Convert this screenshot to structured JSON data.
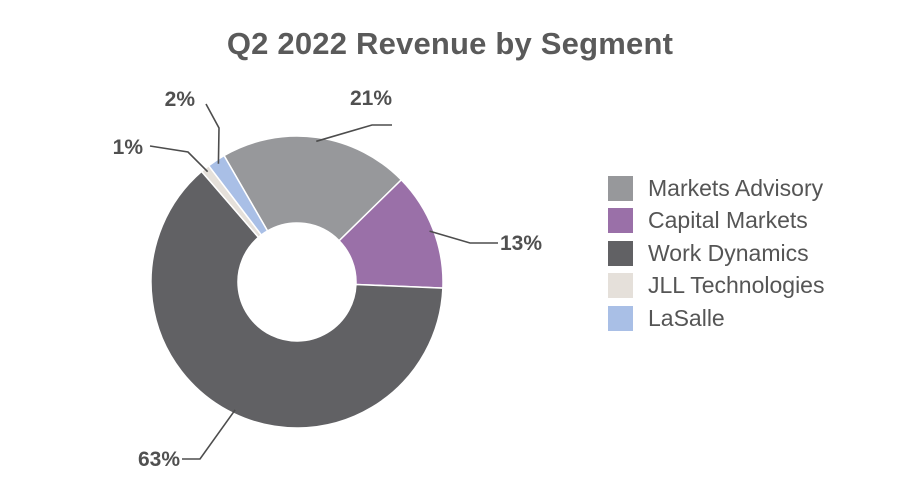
{
  "chart_data": {
    "type": "pie",
    "donut": true,
    "title": "Q2 2022 Revenue by Segment",
    "legend_position": "right",
    "slices": [
      {
        "name": "Markets Advisory",
        "value": 21,
        "label": "21%",
        "color": "#97989b"
      },
      {
        "name": "Capital Markets",
        "value": 13,
        "label": "13%",
        "color": "#9a70a8"
      },
      {
        "name": "Work Dynamics",
        "value": 63,
        "label": "63%",
        "color": "#616164"
      },
      {
        "name": "JLL Technologies",
        "value": 1,
        "label": "1%",
        "color": "#e5e0da"
      },
      {
        "name": "LaSalle",
        "value": 2,
        "label": "2%",
        "color": "#a9bfe6"
      }
    ]
  }
}
